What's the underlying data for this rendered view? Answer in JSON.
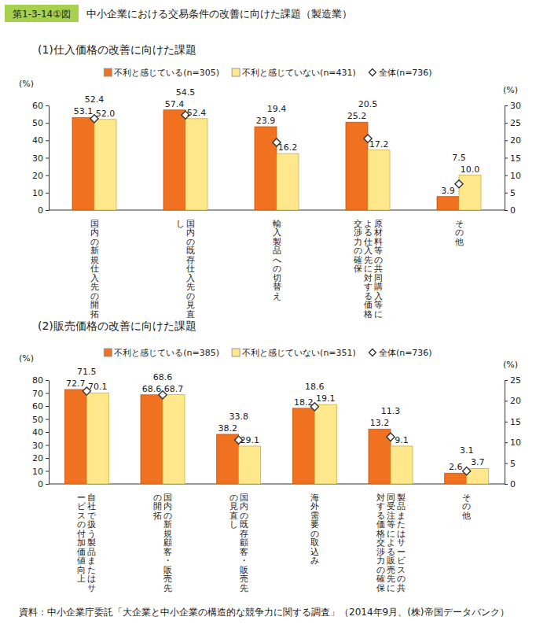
{
  "header": {
    "figure_no": "第1-3-14①図",
    "title": "中小企業における交易条件の改善に向けた課題（製造業）"
  },
  "chart_data": [
    {
      "type": "bar",
      "title": "(1)仕入価格の改善に向けた課題",
      "categories": [
        "国内の新規仕入先の開拓",
        "国内の既存仕入先の見直し",
        "輸入製品への切替え",
        "原材料等の共同購入等による仕入先に対する価格交渉力の確保",
        "その他"
      ],
      "ylabel": "(%)",
      "y2label": "(%)",
      "ylim": [
        0,
        60
      ],
      "yticks": [
        0,
        10,
        20,
        30,
        40,
        50,
        60
      ],
      "y2lim": [
        0,
        30
      ],
      "y2ticks": [
        0,
        5,
        10,
        15,
        20,
        25,
        30
      ],
      "grid": false,
      "legend": "top",
      "data_labels": true,
      "series": [
        {
          "name": "不利と感じている(n=305)",
          "type": "bar",
          "color": "#F0711F",
          "values": [
            53.1,
            57.4,
            null,
            null,
            null
          ]
        },
        {
          "name": "不利と感じていない(n=431)",
          "type": "bar",
          "color": "#FFE88C",
          "values": [
            52.0,
            52.4,
            null,
            null,
            null
          ],
          "value_labels": [
            "52.0",
            "52.4",
            null,
            null,
            null
          ]
        },
        {
          "name": "全体(n=736)",
          "type": "scatter",
          "marker": "diamond",
          "color": "#FFFFFF",
          "values": [
            52.4,
            54.5,
            null,
            null,
            null
          ]
        },
        {
          "name": "不利と感じている(n=305)",
          "type": "bar",
          "color": "#F0711F",
          "axis": "y2",
          "values": [
            null,
            null,
            23.9,
            25.2,
            3.9
          ]
        },
        {
          "name": "不利と感じていない(n=431)",
          "type": "bar",
          "color": "#FFE88C",
          "axis": "y2",
          "values": [
            null,
            null,
            16.2,
            17.2,
            10.0
          ],
          "value_labels": [
            null,
            null,
            "16.2",
            "17.2",
            "10.0"
          ]
        },
        {
          "name": "全体(n=736)",
          "type": "scatter",
          "marker": "diamond",
          "color": "#FFFFFF",
          "axis": "y2",
          "values": [
            null,
            null,
            19.4,
            20.5,
            7.5
          ]
        }
      ]
    },
    {
      "type": "bar",
      "title": "(2)販売価格の改善に向けた課題",
      "categories": [
        "自社で扱う製品またはサービスの付加価値向上",
        "国内の新規顧客・販売先の開拓",
        "国内の既存顧客・販売先の見直し",
        "海外需要の取込み",
        "製品またはサービスの共同受注等による販売先に対する価格交渉力の確保",
        "その他"
      ],
      "ylabel": "(%)",
      "y2label": "(%)",
      "ylim": [
        0,
        80
      ],
      "yticks": [
        0,
        10,
        20,
        30,
        40,
        50,
        60,
        70,
        80
      ],
      "y2lim": [
        0,
        25
      ],
      "y2ticks": [
        0,
        5,
        10,
        15,
        20,
        25
      ],
      "grid": false,
      "legend": "top",
      "data_labels": true,
      "series": [
        {
          "name": "不利と感じている(n=385)",
          "type": "bar",
          "color": "#F0711F",
          "values": [
            72.7,
            68.6,
            38.2,
            null,
            null,
            null
          ]
        },
        {
          "name": "不利と感じていない(n=351)",
          "type": "bar",
          "color": "#FFE88C",
          "values": [
            70.1,
            68.7,
            29.1,
            null,
            null,
            null
          ]
        },
        {
          "name": "全体(n=736)",
          "type": "scatter",
          "marker": "diamond",
          "color": "#FFFFFF",
          "values": [
            71.5,
            68.6,
            33.8,
            null,
            null,
            null
          ]
        },
        {
          "name": "不利と感じている(n=385)",
          "type": "bar",
          "color": "#F0711F",
          "axis": "y2",
          "values": [
            null,
            null,
            null,
            18.2,
            13.2,
            2.6
          ]
        },
        {
          "name": "不利と感じていない(n=351)",
          "type": "bar",
          "color": "#FFE88C",
          "axis": "y2",
          "values": [
            null,
            null,
            null,
            19.1,
            9.1,
            3.7
          ]
        },
        {
          "name": "全体(n=736)",
          "type": "scatter",
          "marker": "diamond",
          "color": "#FFFFFF",
          "axis": "y2",
          "values": [
            null,
            null,
            null,
            18.6,
            11.3,
            3.1
          ]
        }
      ]
    }
  ],
  "source": "資料：中小企業庁委託「大企業と中小企業の構造的な競争力に関する調査」（2014年9月、(株)帝国データバンク）"
}
